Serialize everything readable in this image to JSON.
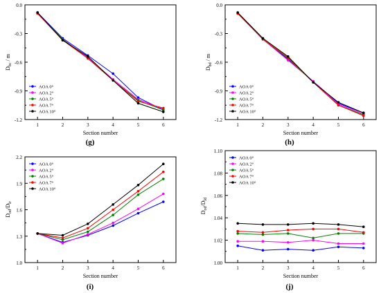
{
  "chart_data": [
    {
      "panel_label": "(g)",
      "type": "line",
      "x": [
        1,
        2,
        3,
        4,
        5,
        6
      ],
      "xlabel": "Section number",
      "ylabel_main": "D",
      "ylabel_sub": "bc",
      "ylabel_tail": " / m",
      "xlim": [
        0.5,
        6.5
      ],
      "ylim": [
        -1.2,
        0.0
      ],
      "yticks": [
        0.0,
        -0.3,
        -0.6,
        -0.9,
        -1.2
      ],
      "ytick_labels": [
        "0.0",
        "-0.3",
        "-0.6",
        "-0.9",
        "-1.2"
      ],
      "legend_position": "lower-left",
      "series": [
        {
          "name": "AOA 0°",
          "color": "#0000ff",
          "values": [
            -0.08,
            -0.35,
            -0.53,
            -0.72,
            -0.97,
            -1.1
          ]
        },
        {
          "name": "AOA 2°",
          "color": "#ff00ff",
          "values": [
            -0.09,
            -0.36,
            -0.55,
            -0.78,
            -0.99,
            -1.09
          ]
        },
        {
          "name": "AOA 5°",
          "color": "#008000",
          "values": [
            -0.09,
            -0.36,
            -0.56,
            -0.79,
            -1.0,
            -1.1
          ]
        },
        {
          "name": "AOA 7°",
          "color": "#ff0000",
          "values": [
            -0.09,
            -0.37,
            -0.56,
            -0.79,
            -1.01,
            -1.08
          ]
        },
        {
          "name": "AOA 10°",
          "color": "#000000",
          "values": [
            -0.08,
            -0.37,
            -0.54,
            -0.79,
            -1.03,
            -1.12
          ]
        }
      ]
    },
    {
      "panel_label": "(h)",
      "type": "line",
      "x": [
        1,
        2,
        3,
        4,
        5,
        6
      ],
      "xlabel": "Section number",
      "ylabel_main": "D",
      "ylabel_sub": "bd",
      "ylabel_tail": " / m",
      "xlim": [
        0.5,
        6.5
      ],
      "ylim": [
        -1.2,
        0.0
      ],
      "yticks": [
        0.0,
        -0.3,
        -0.6,
        -0.9,
        -1.2
      ],
      "ytick_labels": [
        "0.0",
        "-0.3",
        "-0.6",
        "-0.9",
        "-1.2"
      ],
      "legend_position": "lower-left",
      "series": [
        {
          "name": "AOA 0°",
          "color": "#0000ff",
          "values": [
            -0.09,
            -0.36,
            -0.57,
            -0.8,
            -1.03,
            -1.13
          ]
        },
        {
          "name": "AOA 2°",
          "color": "#ff00ff",
          "values": [
            -0.09,
            -0.36,
            -0.58,
            -0.8,
            -1.04,
            -1.14
          ]
        },
        {
          "name": "AOA 5°",
          "color": "#008000",
          "values": [
            -0.09,
            -0.36,
            -0.56,
            -0.81,
            -1.05,
            -1.15
          ]
        },
        {
          "name": "AOA 7°",
          "color": "#ff0000",
          "values": [
            -0.09,
            -0.36,
            -0.55,
            -0.81,
            -1.05,
            -1.16
          ]
        },
        {
          "name": "AOA 10°",
          "color": "#000000",
          "values": [
            -0.08,
            -0.35,
            -0.54,
            -0.81,
            -1.02,
            -1.13
          ]
        }
      ]
    },
    {
      "panel_label": "(i)",
      "type": "line",
      "x": [
        1,
        2,
        3,
        4,
        5,
        6
      ],
      "xlabel": "Section number",
      "ylabel_main": "D",
      "ylabel_sub": "od",
      "ylabel_mid": "/D",
      "ylabel_sub2": "lr",
      "xlim": [
        0.5,
        6.5
      ],
      "ylim": [
        1.0,
        2.2
      ],
      "yticks": [
        1.0,
        1.3,
        1.6,
        1.9,
        2.2
      ],
      "ytick_labels": [
        "1.0",
        "1.3",
        "1.6",
        "1.9",
        "2.2"
      ],
      "legend_position": "upper-left",
      "series": [
        {
          "name": "AOA 0°",
          "color": "#0000ff",
          "values": [
            1.33,
            1.23,
            1.31,
            1.42,
            1.56,
            1.69
          ]
        },
        {
          "name": "AOA 2°",
          "color": "#ff00ff",
          "values": [
            1.33,
            1.22,
            1.32,
            1.45,
            1.61,
            1.78
          ]
        },
        {
          "name": "AOA 5°",
          "color": "#008000",
          "values": [
            1.33,
            1.26,
            1.35,
            1.54,
            1.77,
            1.95
          ]
        },
        {
          "name": "AOA 7°",
          "color": "#ff0000",
          "values": [
            1.33,
            1.28,
            1.39,
            1.6,
            1.81,
            2.03
          ]
        },
        {
          "name": "AOA 10°",
          "color": "#000000",
          "values": [
            1.33,
            1.31,
            1.44,
            1.66,
            1.88,
            2.12
          ]
        }
      ]
    },
    {
      "panel_label": "(j)",
      "type": "line",
      "x": [
        1,
        2,
        3,
        4,
        5,
        6
      ],
      "xlabel": "Section number",
      "ylabel_main": "D",
      "ylabel_sub": "od",
      "ylabel_mid": "/D",
      "ylabel_sub2": "ld",
      "xlim": [
        0.5,
        6.5
      ],
      "ylim": [
        1.0,
        1.1
      ],
      "yticks": [
        1.0,
        1.02,
        1.04,
        1.06,
        1.08,
        1.1
      ],
      "ytick_labels": [
        "1.00",
        "1.02",
        "1.04",
        "1.06",
        "1.08",
        "1.10"
      ],
      "legend_position": "upper-left",
      "series": [
        {
          "name": "AOA 0°",
          "color": "#0000ff",
          "values": [
            1.015,
            1.011,
            1.012,
            1.011,
            1.014,
            1.013
          ]
        },
        {
          "name": "AOA 2°",
          "color": "#ff00ff",
          "values": [
            1.019,
            1.019,
            1.018,
            1.02,
            1.017,
            1.017
          ]
        },
        {
          "name": "AOA 5°",
          "color": "#008000",
          "values": [
            1.026,
            1.025,
            1.026,
            1.022,
            1.026,
            1.026
          ]
        },
        {
          "name": "AOA 7°",
          "color": "#ff0000",
          "values": [
            1.028,
            1.027,
            1.029,
            1.03,
            1.03,
            1.027
          ]
        },
        {
          "name": "AOA 10°",
          "color": "#000000",
          "values": [
            1.035,
            1.034,
            1.034,
            1.035,
            1.034,
            1.032
          ]
        }
      ]
    }
  ]
}
